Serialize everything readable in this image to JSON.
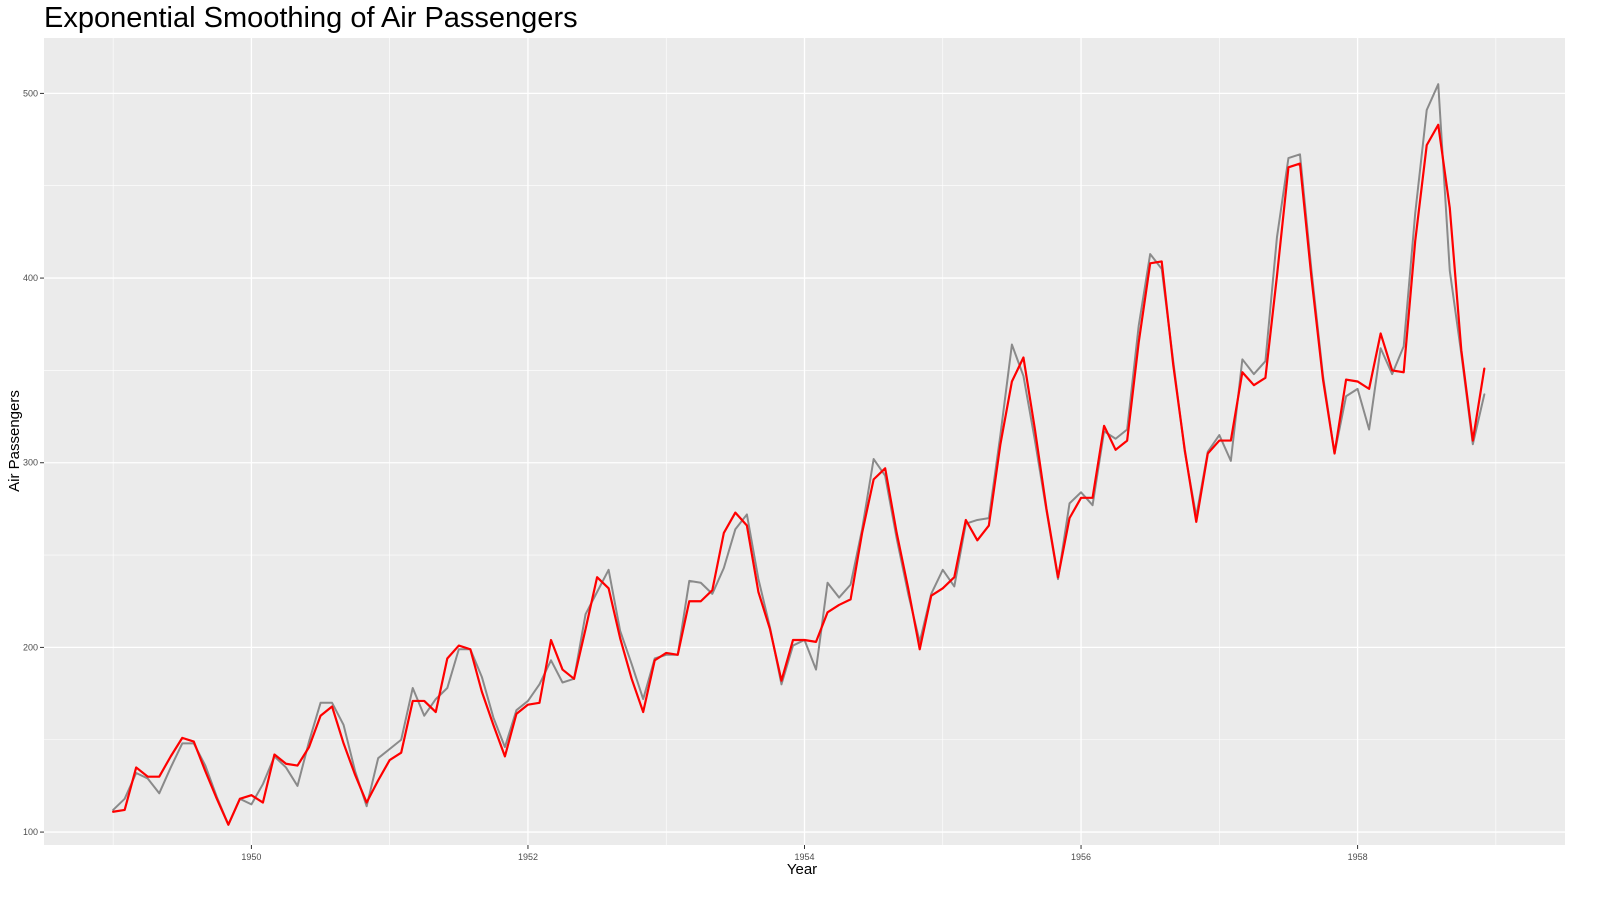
{
  "chart_data": {
    "type": "line",
    "title": "Exponential Smoothing of Air Passengers",
    "xlabel": "Year",
    "ylabel": "Air Passengers",
    "xlim": [
      1948.5,
      1959.5
    ],
    "ylim": [
      93,
      530
    ],
    "x_ticks": [
      1950,
      1952,
      1954,
      1956,
      1958
    ],
    "y_ticks": [
      100,
      200,
      300,
      400,
      500
    ],
    "grid": true,
    "legend": "none",
    "start_year": 1949,
    "months_per_year": 12,
    "series": [
      {
        "color": "#8a8a8a",
        "values": [
          112,
          118,
          132,
          129,
          121,
          135,
          148,
          148,
          136,
          119,
          104,
          118,
          115,
          126,
          141,
          135,
          125,
          149,
          170,
          170,
          158,
          133,
          114,
          140,
          145,
          150,
          178,
          163,
          172,
          178,
          199,
          199,
          184,
          162,
          146,
          166,
          171,
          180,
          193,
          181,
          183,
          218,
          230,
          242,
          209,
          191,
          172,
          194,
          196,
          196,
          236,
          235,
          229,
          243,
          264,
          272,
          237,
          211,
          180,
          201,
          204,
          188,
          235,
          227,
          234,
          264,
          302,
          293,
          259,
          229,
          203,
          229,
          242,
          233,
          267,
          269,
          270,
          315,
          364,
          347,
          312,
          274,
          237,
          278,
          284,
          277,
          317,
          313,
          318,
          374,
          413,
          405,
          355,
          306,
          271,
          306,
          315,
          301,
          356,
          348,
          355,
          422,
          465,
          467,
          404,
          347,
          305,
          336,
          340,
          318,
          362,
          348,
          363,
          435,
          491,
          505,
          404,
          359,
          310,
          337
        ]
      },
      {
        "color": "#ff0000",
        "values": [
          111,
          112,
          135,
          130,
          130,
          141,
          151,
          149,
          133,
          118,
          104,
          118,
          120,
          116,
          142,
          137,
          136,
          146,
          163,
          168,
          148,
          131,
          116,
          128,
          139,
          143,
          171,
          171,
          165,
          194,
          201,
          199,
          176,
          158,
          141,
          164,
          169,
          170,
          204,
          188,
          183,
          210,
          238,
          232,
          205,
          183,
          165,
          193,
          197,
          196,
          225,
          225,
          231,
          262,
          273,
          266,
          230,
          210,
          182,
          204,
          204,
          203,
          219,
          223,
          226,
          262,
          291,
          297,
          262,
          232,
          199,
          228,
          232,
          238,
          269,
          258,
          266,
          310,
          344,
          357,
          318,
          275,
          238,
          270,
          281,
          281,
          320,
          307,
          312,
          365,
          408,
          409,
          353,
          307,
          268,
          305,
          312,
          312,
          349,
          342,
          346,
          401,
          460,
          462,
          400,
          345,
          305,
          345,
          344,
          340,
          370,
          350,
          349,
          420,
          472,
          483,
          438,
          361,
          312,
          351
        ]
      }
    ]
  }
}
